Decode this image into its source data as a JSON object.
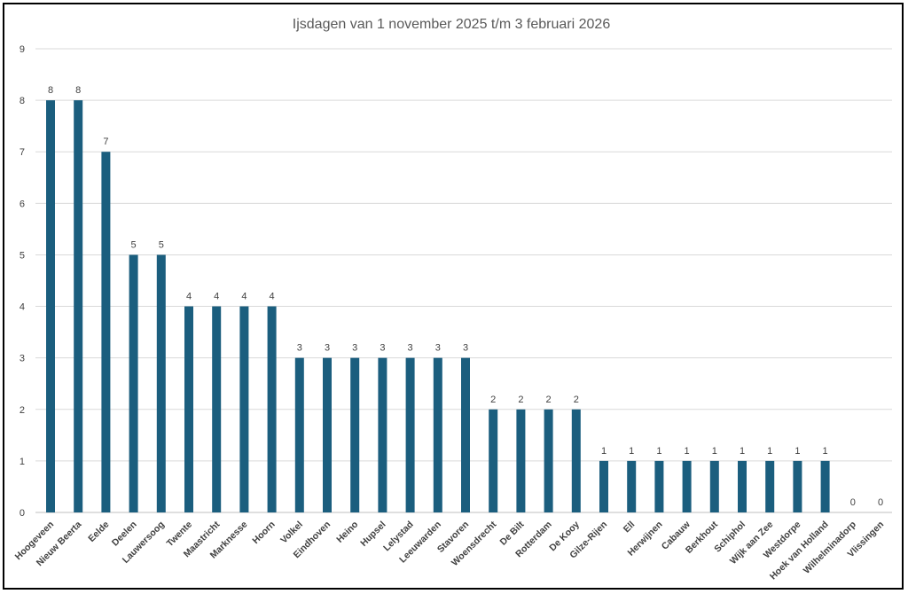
{
  "chart_data": {
    "type": "bar",
    "title": "Ijsdagen van 1 november 2025 t/m 3 februari 2026",
    "xlabel": "",
    "ylabel": "",
    "ylim": [
      0,
      9
    ],
    "yticks": [
      0,
      1,
      2,
      3,
      4,
      5,
      6,
      7,
      8,
      9
    ],
    "grid": true,
    "legend": "none",
    "bar_color": "#1b5e7e",
    "categories": [
      "Hoogeveen",
      "Nieuw Beerta",
      "Eelde",
      "Deelen",
      "Lauwersoog",
      "Twente",
      "Maastricht",
      "Marknesse",
      "Hoorn",
      "Volkel",
      "Eindhoven",
      "Heino",
      "Hupsel",
      "Lelystad",
      "Leeuwarden",
      "Stavoren",
      "Woensdrecht",
      "De Bilt",
      "Rotterdam",
      "De Kooy",
      "Gilze-Rijen",
      "Ell",
      "Herwijnen",
      "Cabauw",
      "Berkhout",
      "Schiphol",
      "Wijk aan Zee",
      "Westdorpe",
      "Hoek van Holland",
      "Wilhelminadorp",
      "Vlissingen"
    ],
    "values": [
      8,
      8,
      7,
      5,
      5,
      4,
      4,
      4,
      4,
      3,
      3,
      3,
      3,
      3,
      3,
      3,
      2,
      2,
      2,
      2,
      1,
      1,
      1,
      1,
      1,
      1,
      1,
      1,
      1,
      0,
      0
    ]
  }
}
